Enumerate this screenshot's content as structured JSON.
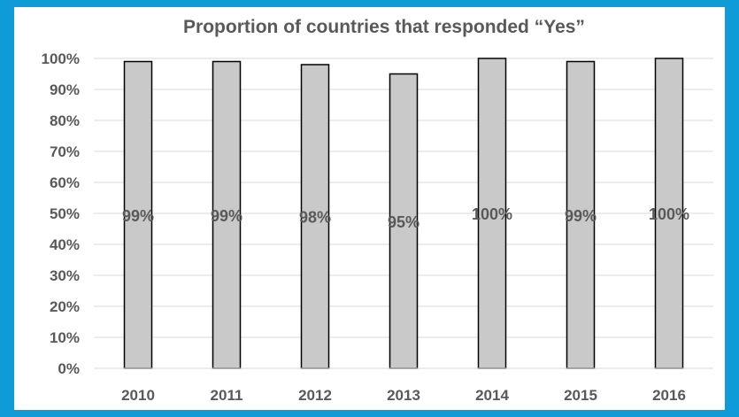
{
  "chart_data": {
    "type": "bar",
    "title": "Proportion of countries that responded “Yes”",
    "categories": [
      "2010",
      "2011",
      "2012",
      "2013",
      "2014",
      "2015",
      "2016"
    ],
    "values": [
      99,
      99,
      98,
      95,
      100,
      99,
      100
    ],
    "data_labels": [
      "99%",
      "99%",
      "98%",
      "95%",
      "100%",
      "99%",
      "100%"
    ],
    "xlabel": "",
    "ylabel": "",
    "ylim": [
      0,
      100
    ],
    "y_ticks": [
      0,
      10,
      20,
      30,
      40,
      50,
      60,
      70,
      80,
      90,
      100
    ],
    "y_tick_labels": [
      "0%",
      "10%",
      "20%",
      "30%",
      "40%",
      "50%",
      "60%",
      "70%",
      "80%",
      "90%",
      "100%"
    ],
    "grid": true,
    "legend": "none",
    "colors": {
      "bar_fill": "#c9c9c9",
      "bar_stroke": "#000000",
      "gridline": "#d9d9d9",
      "text": "#595959",
      "frame_background": "#0f9bd8"
    }
  }
}
